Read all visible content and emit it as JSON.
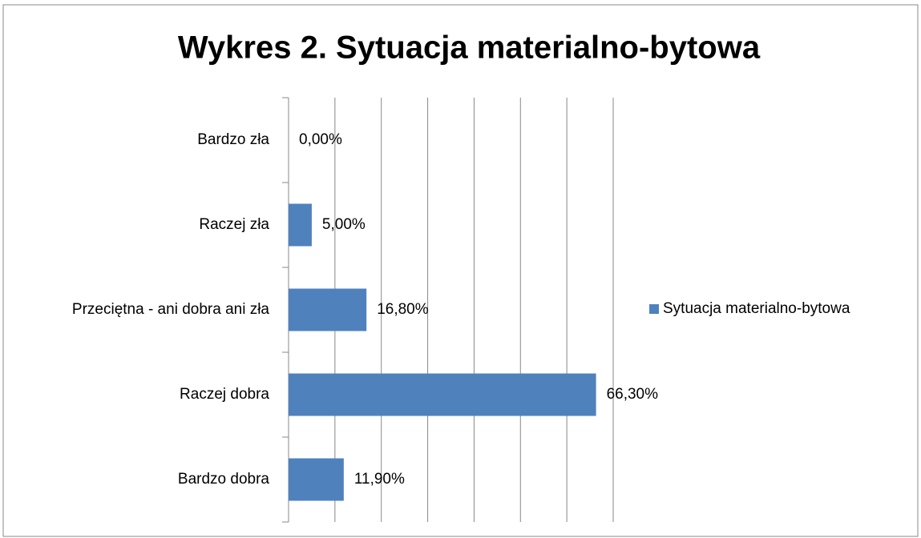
{
  "chart_data": {
    "type": "hbar",
    "title": "Wykres 2. Sytuacja materialno-bytowa",
    "categories": [
      "Bardzo zła",
      "Raczej zła",
      "Przeciętna - ani dobra ani zła",
      "Raczej dobra",
      "Bardzo dobra"
    ],
    "series": [
      {
        "name": "Sytuacja materialno-bytowa",
        "color": "#4f81bd",
        "values": [
          0,
          5,
          16.8,
          66.3,
          11.9
        ],
        "value_labels": [
          "0,00%",
          "5,00%",
          "16,80%",
          "66,30%",
          "11,90%"
        ]
      }
    ],
    "xlim": [
      0,
      70
    ],
    "xticks": [
      0,
      10,
      20,
      30,
      40,
      50,
      60,
      70
    ],
    "grid": true,
    "legend": "right"
  }
}
